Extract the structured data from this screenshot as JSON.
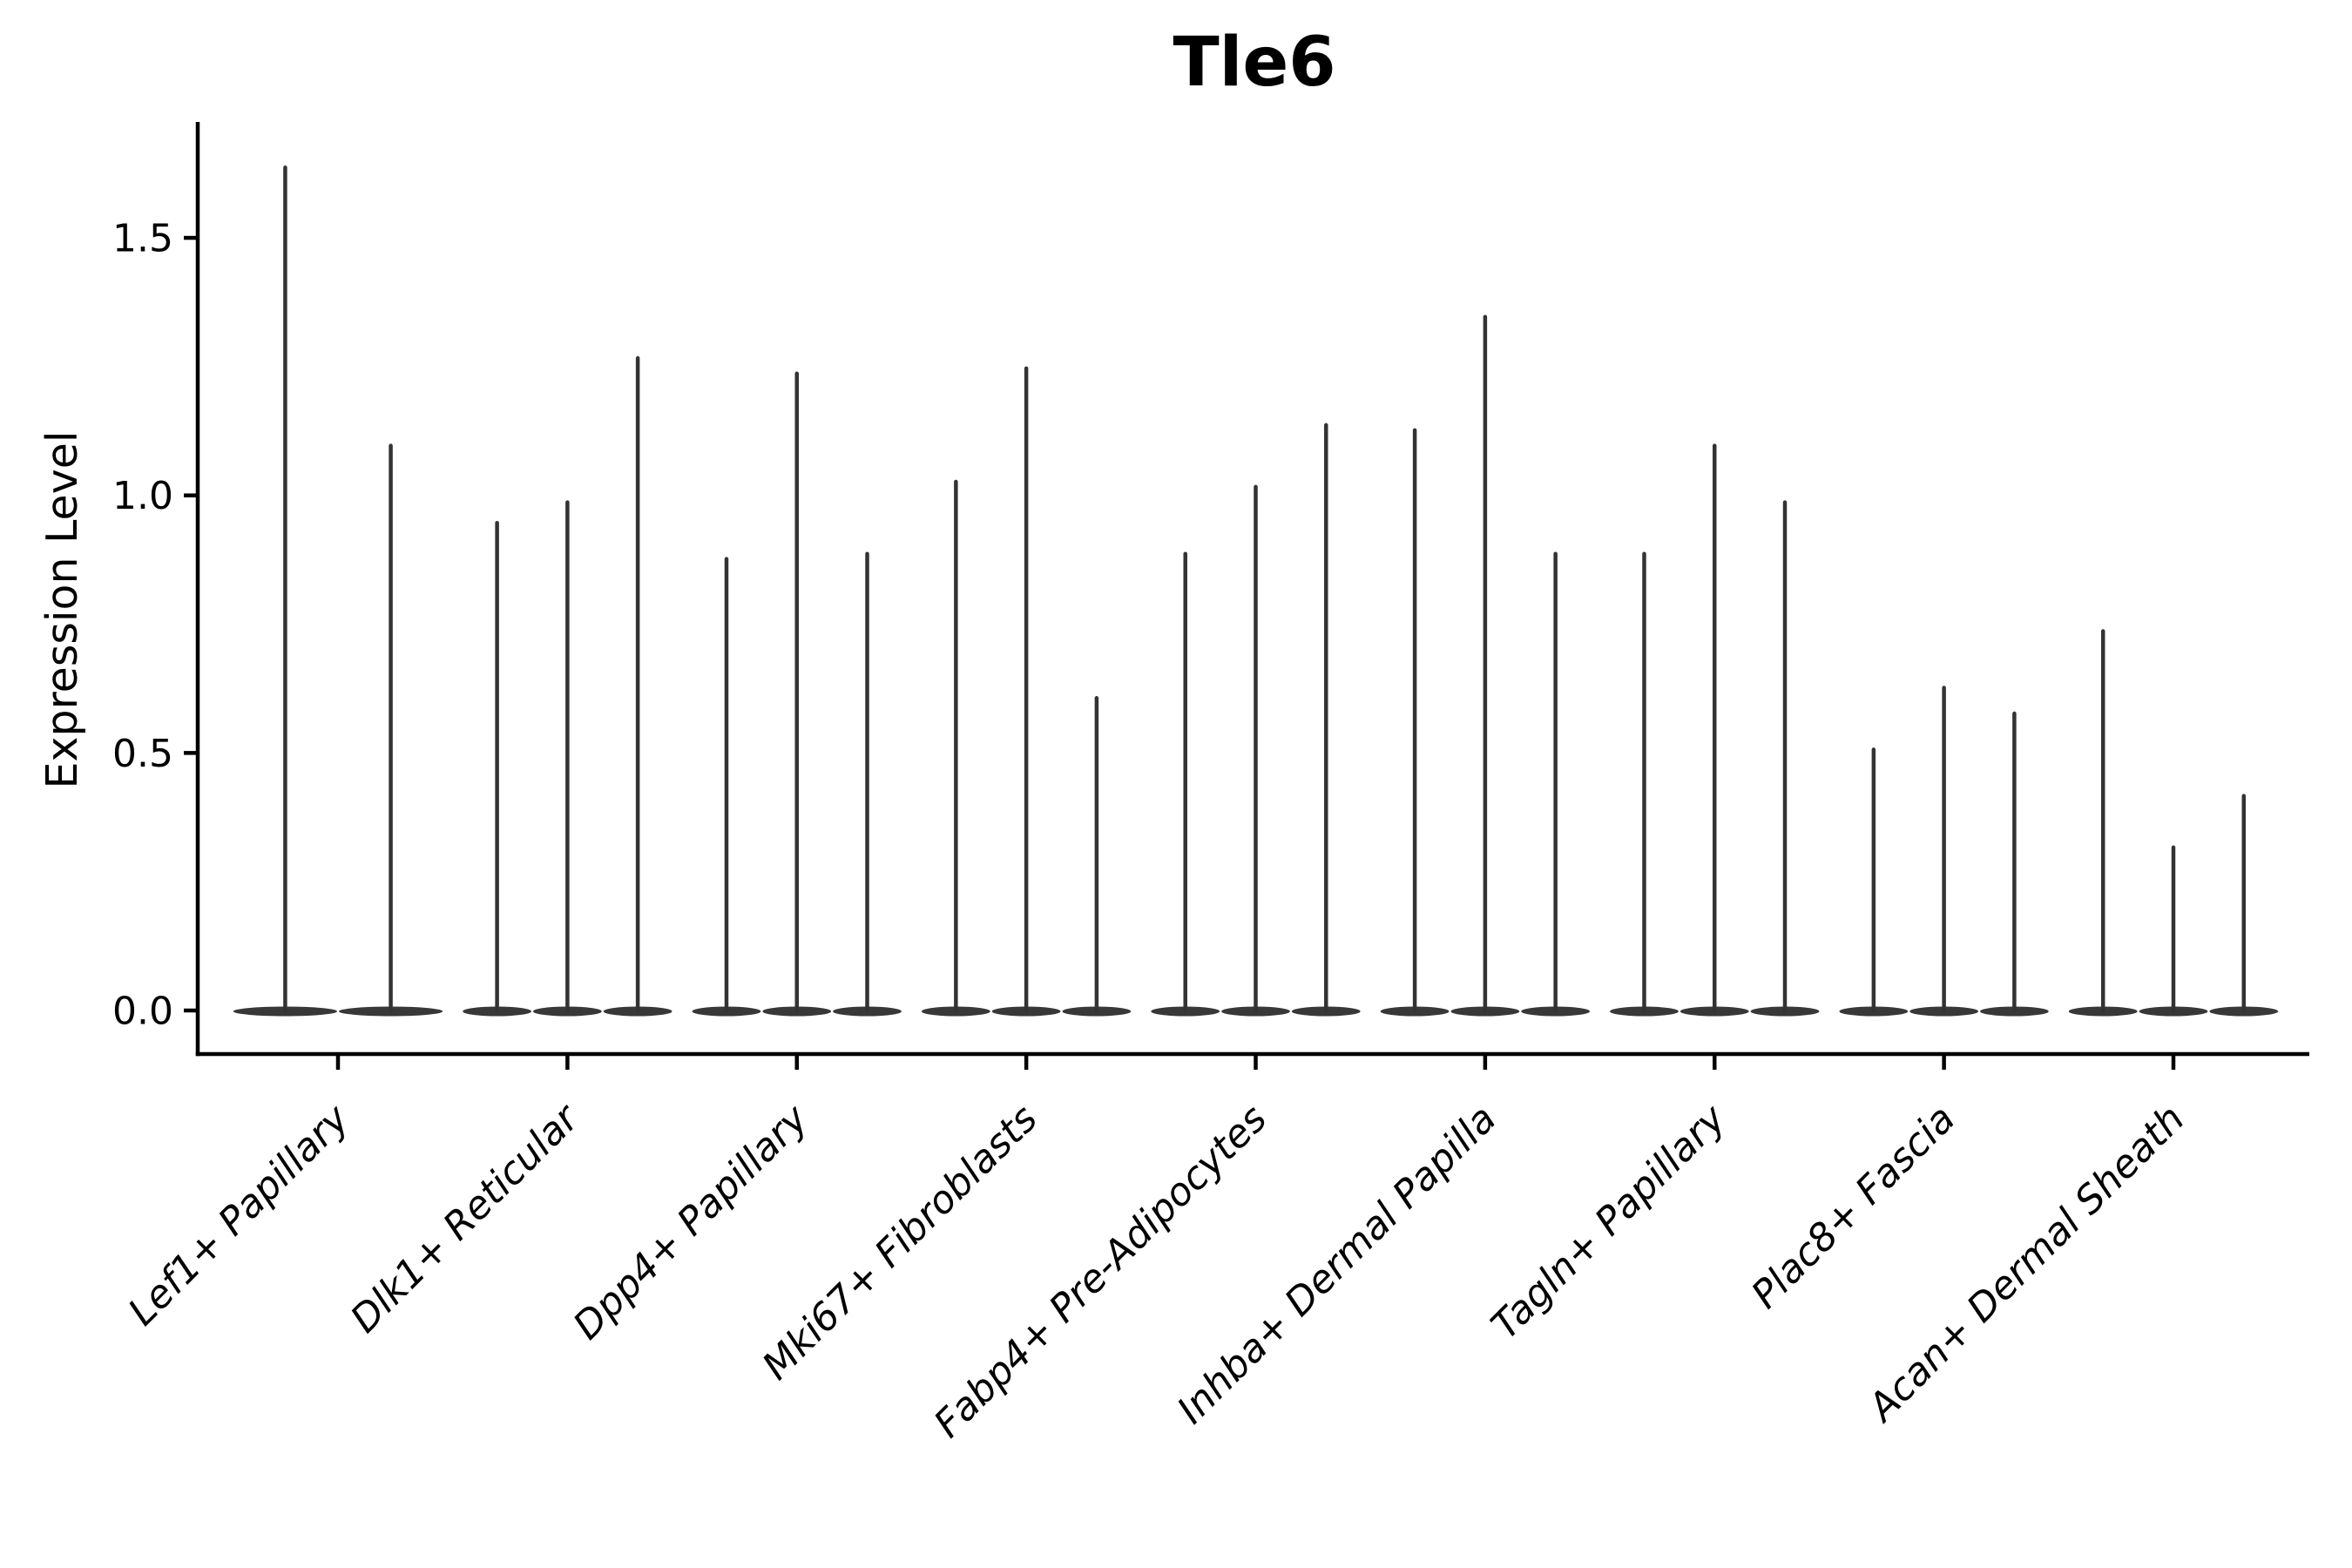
{
  "chart_data": {
    "type": "violin",
    "title": "Tle6",
    "xlabel": "",
    "ylabel": "Expression Level",
    "yticks": [
      "0.0",
      "0.5",
      "1.0",
      "1.5"
    ],
    "ytick_values": [
      0.0,
      0.5,
      1.0,
      1.5
    ],
    "ylim": [
      0.0,
      1.72
    ],
    "grid": false,
    "legend": false,
    "categories": [
      "Lef1+ Papillary",
      "Dlk1+ Reticular",
      "Dpp4+ Papillary",
      "Mki67+ Fibroblasts",
      "Fabp4+ Pre-Adipocytes",
      "Inhba+ Dermal Papilla",
      "Tagln+ Papillary",
      "Plac8+ Fascia",
      "Acan+ Dermal Sheath"
    ],
    "violin_maxima_per_category": [
      [
        1.64,
        1.1
      ],
      [
        0.95,
        0.99,
        1.27
      ],
      [
        0.88,
        1.24,
        0.89
      ],
      [
        1.03,
        1.25,
        0.61
      ],
      [
        0.89,
        1.02,
        1.14
      ],
      [
        1.13,
        1.35,
        0.89
      ],
      [
        0.89,
        1.1,
        0.99
      ],
      [
        0.51,
        0.63,
        0.58
      ],
      [
        0.74,
        0.32,
        0.42
      ]
    ],
    "violin_mode": "most density at 0 with thin spike to maximum",
    "colors": {
      "violin": "#333333",
      "violin_base": "#383838",
      "axis": "#000000",
      "text": "#000000",
      "background": "#ffffff"
    }
  }
}
